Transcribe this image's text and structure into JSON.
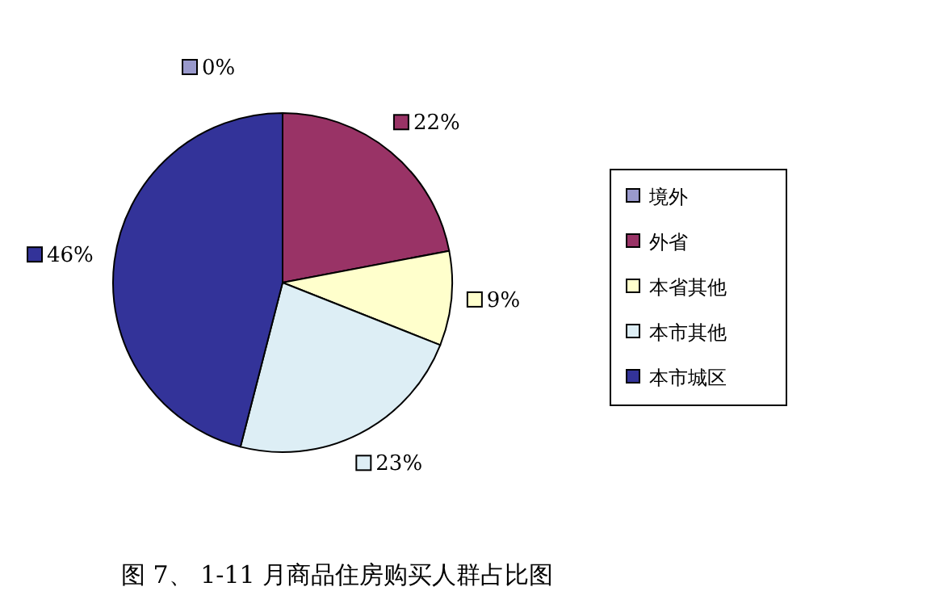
{
  "chart_data": {
    "type": "pie",
    "title": "图 7、 1-11 月商品住房购买人群占比图",
    "categories": [
      "境外",
      "外省",
      "本省其他",
      "本市其他",
      "本市城区"
    ],
    "values": [
      0,
      22,
      9,
      23,
      46
    ],
    "value_labels": [
      "0%",
      "22%",
      "9%",
      "23%",
      "46%"
    ],
    "colors": [
      "#9999cc",
      "#993366",
      "#ffffcc",
      "#ddeef5",
      "#333399"
    ],
    "legend": "right"
  }
}
